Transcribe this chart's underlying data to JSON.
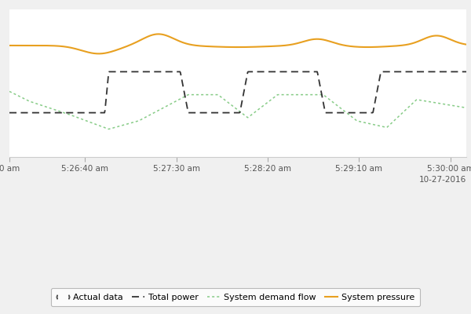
{
  "background_color": "#f0f0f0",
  "plot_bg_color": "#ffffff",
  "grid_color": "#d0d0d0",
  "total_power_color": "#333333",
  "demand_flow_color": "#88cc88",
  "system_pressure_color": "#e8a020",
  "x_tick_labels": [
    "0 am",
    "5:26:40 am",
    "5:27:30 am",
    "5:28:20 am",
    "5:29:10 am",
    "5:30:00 am"
  ],
  "date_label": "10-27-2016",
  "legend_labels": [
    "Actual data",
    "Total power",
    "System demand flow",
    "System pressure"
  ]
}
